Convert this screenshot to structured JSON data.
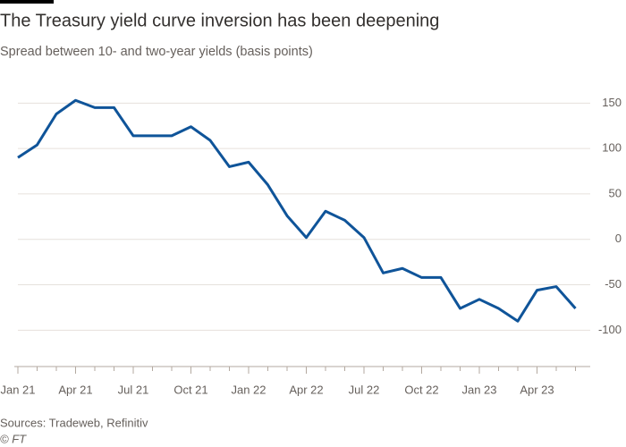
{
  "chart_data": {
    "type": "line",
    "title": "The Treasury yield curve inversion has been deepening",
    "subtitle": "Spread between 10- and two-year yields (basis points)",
    "source": "Sources: Tradeweb, Refinitiv",
    "credit": "© FT",
    "categories": [
      "Jan 21",
      null,
      null,
      "Apr 21",
      null,
      null,
      "Jul 21",
      null,
      null,
      "Oct 21",
      null,
      null,
      "Jan 22",
      null,
      null,
      "Apr 22",
      null,
      null,
      "Jul 22",
      null,
      null,
      "Oct 22",
      null,
      null,
      "Jan 23",
      null,
      null,
      "Apr 23",
      null,
      null
    ],
    "series": [
      {
        "name": "10y-2y spread",
        "color": "#0f5499",
        "values": [
          90,
          104,
          138,
          153,
          145,
          145,
          114,
          114,
          114,
          124,
          109,
          80,
          85,
          60,
          26,
          2,
          31,
          21,
          2,
          -37,
          -32,
          -42,
          -42,
          -76,
          -66,
          -76,
          -90,
          -56,
          -52,
          -76
        ]
      }
    ],
    "ylim": [
      -140,
      170
    ],
    "yticks": [
      -100,
      -50,
      0,
      50,
      100,
      150
    ],
    "grid": true
  }
}
